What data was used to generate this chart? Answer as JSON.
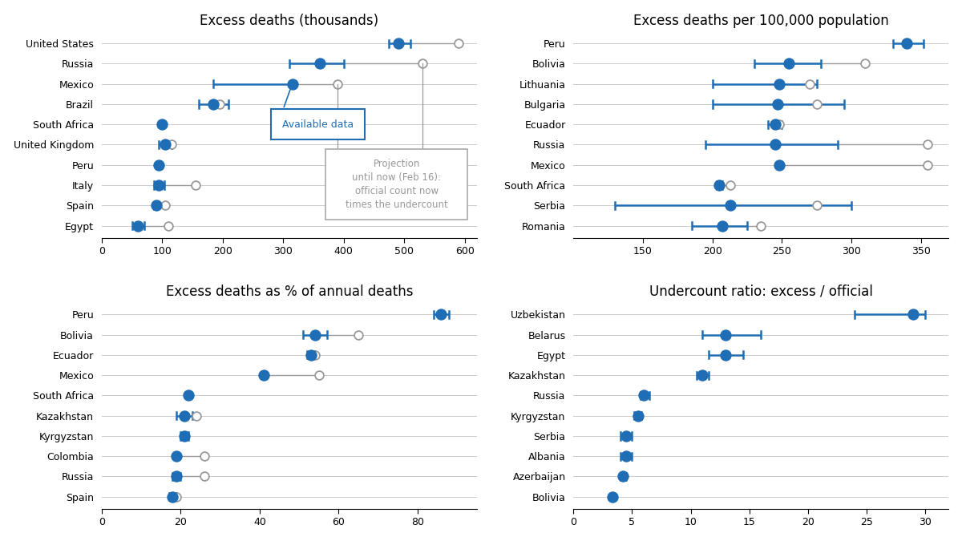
{
  "panel1": {
    "title": "Excess deaths (thousands)",
    "countries": [
      "United States",
      "Russia",
      "Mexico",
      "Brazil",
      "South Africa",
      "United Kingdom",
      "Peru",
      "Italy",
      "Spain",
      "Egypt"
    ],
    "blue_dot": [
      490,
      360,
      315,
      185,
      100,
      105,
      95,
      95,
      90,
      60
    ],
    "blue_lo": [
      475,
      310,
      185,
      160,
      100,
      95,
      95,
      87,
      87,
      50
    ],
    "blue_hi": [
      510,
      400,
      315,
      210,
      100,
      115,
      95,
      103,
      92,
      70
    ],
    "grey_dot": [
      590,
      530,
      390,
      195,
      null,
      115,
      null,
      155,
      105,
      110
    ],
    "xlim": [
      0,
      620
    ],
    "xticks": [
      0,
      100,
      200,
      300,
      400,
      500,
      600
    ]
  },
  "panel2": {
    "title": "Excess deaths per 100,000 population",
    "countries": [
      "Peru",
      "Bolivia",
      "Lithuania",
      "Bulgaria",
      "Ecuador",
      "Russia",
      "Mexico",
      "South Africa",
      "Serbia",
      "Romania"
    ],
    "blue_dot": [
      340,
      255,
      248,
      247,
      245,
      245,
      248,
      205,
      213,
      207
    ],
    "blue_lo": [
      330,
      230,
      200,
      200,
      240,
      195,
      248,
      203,
      130,
      185
    ],
    "blue_hi": [
      352,
      278,
      275,
      295,
      250,
      290,
      248,
      207,
      300,
      225
    ],
    "grey_dot": [
      null,
      310,
      270,
      275,
      248,
      355,
      355,
      213,
      275,
      235
    ],
    "xlim": [
      100,
      370
    ],
    "xticks": [
      150,
      200,
      250,
      300,
      350
    ]
  },
  "panel3": {
    "title": "Excess deaths as % of annual deaths",
    "countries": [
      "Peru",
      "Bolivia",
      "Ecuador",
      "Mexico",
      "South Africa",
      "Kazakhstan",
      "Kyrgyzstan",
      "Colombia",
      "Russia",
      "Spain"
    ],
    "blue_dot": [
      86,
      54,
      53,
      41,
      22,
      21,
      21,
      19,
      19,
      18
    ],
    "blue_lo": [
      84,
      51,
      52,
      41,
      22,
      19,
      20,
      19,
      18,
      17
    ],
    "blue_hi": [
      88,
      57,
      54,
      41,
      22,
      23,
      22,
      19,
      20,
      19
    ],
    "grey_dot": [
      null,
      65,
      54,
      55,
      null,
      24,
      null,
      26,
      26,
      19
    ],
    "xlim": [
      0,
      95
    ],
    "xticks": [
      0,
      20,
      40,
      60,
      80
    ]
  },
  "panel4": {
    "title": "Undercount ratio: excess / official",
    "countries": [
      "Uzbekistan",
      "Belarus",
      "Egypt",
      "Kazakhstan",
      "Russia",
      "Kyrgyzstan",
      "Serbia",
      "Albania",
      "Azerbaijan",
      "Bolivia"
    ],
    "blue_dot": [
      29,
      13,
      13,
      11,
      6,
      5.5,
      4.5,
      4.5,
      4.2,
      3.3
    ],
    "blue_lo": [
      24,
      11,
      11.5,
      10.5,
      5.7,
      5.2,
      4.0,
      4.0,
      4.0,
      3.3
    ],
    "blue_hi": [
      30,
      16,
      14.5,
      11.5,
      6.5,
      5.8,
      5.0,
      5.0,
      4.5,
      3.3
    ],
    "grey_dot": [
      null,
      null,
      null,
      null,
      null,
      null,
      null,
      null,
      null,
      null
    ],
    "xlim": [
      0,
      32
    ],
    "xticks": [
      0,
      5,
      10,
      15,
      20,
      25,
      30
    ]
  },
  "blue_color": "#1f6eb5",
  "grey_color": "#999999",
  "bg_color": "#ffffff",
  "grid_color": "#cccccc",
  "title_fontsize": 12,
  "label_fontsize": 9,
  "tick_fontsize": 9
}
